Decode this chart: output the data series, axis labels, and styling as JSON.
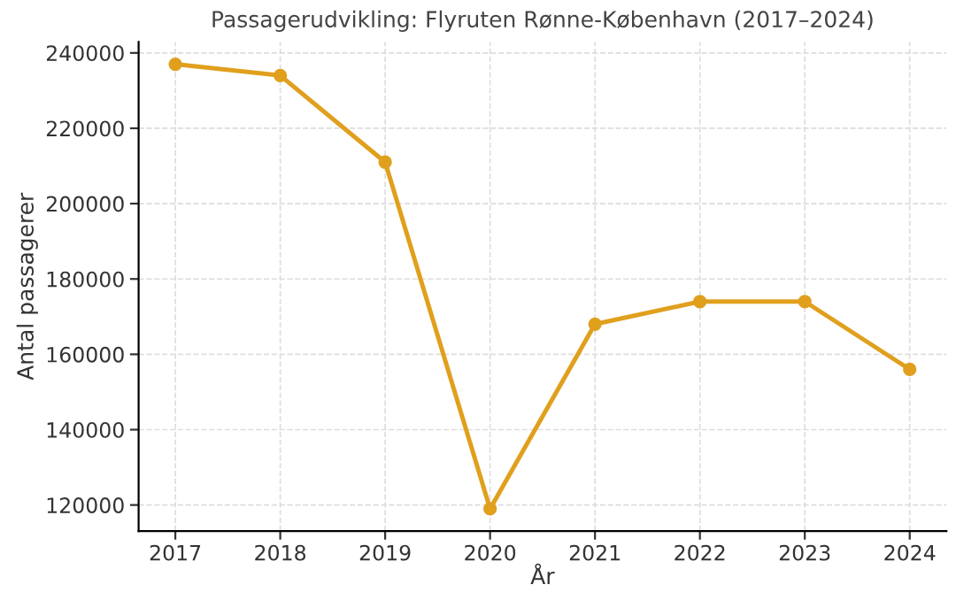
{
  "chart_data": {
    "type": "line",
    "title": "Passagerudvikling: Flyruten Rønne-København (2017–2024)",
    "xlabel": "År",
    "ylabel": "Antal passagerer",
    "x": [
      2017,
      2018,
      2019,
      2020,
      2021,
      2022,
      2023,
      2024
    ],
    "series": [
      {
        "color": "#e0a01e",
        "values": [
          237000,
          234000,
          211000,
          119000,
          168000,
          174000,
          174000,
          156000
        ]
      }
    ],
    "xlim": [
      2016.65,
      2024.35
    ],
    "xticks": [
      2017,
      2018,
      2019,
      2020,
      2021,
      2022,
      2023,
      2024
    ],
    "ylim": [
      113100,
      242900
    ],
    "yticks": [
      120000,
      140000,
      160000,
      180000,
      200000,
      220000,
      240000
    ],
    "grid": true,
    "marker": "circle",
    "line_style": "solid"
  }
}
